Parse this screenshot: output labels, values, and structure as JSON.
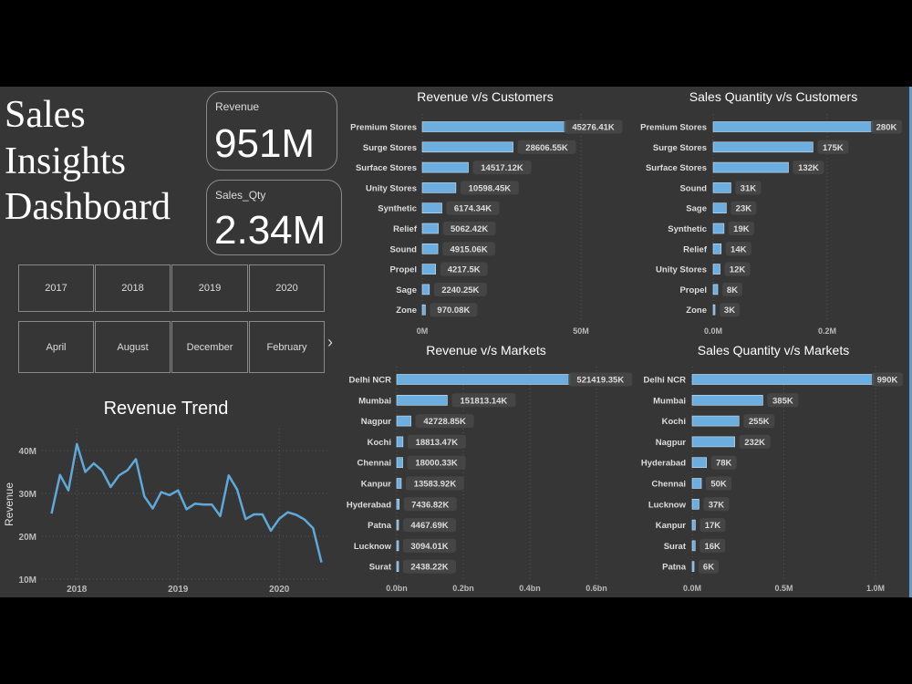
{
  "header": {
    "title_lines": [
      "Sales",
      "Insights",
      "Dashboard"
    ]
  },
  "kpis": [
    {
      "label": "Revenue",
      "value": "951M"
    },
    {
      "label": "Sales_Qty",
      "value": "2.34M"
    }
  ],
  "year_slicer": [
    "2017",
    "2018",
    "2019",
    "2020"
  ],
  "month_slicer": [
    "April",
    "August",
    "December",
    "February"
  ],
  "month_slicer_next_icon": "chevron-right-icon",
  "colors": {
    "bar": "#6caee0",
    "line": "#5fa8d8",
    "background": "#363636",
    "label_box": "#474747"
  },
  "chart_data": [
    {
      "type": "line",
      "title": "Revenue Trend",
      "ylabel": "Revenue",
      "xlabel": "",
      "x_ticks": [
        "2018",
        "2019",
        "2020"
      ],
      "y_ticks": [
        "10M",
        "20M",
        "30M",
        "40M"
      ],
      "ylim": [
        10,
        40
      ],
      "y_unit": "M",
      "grid": true,
      "x": [
        "2017-10",
        "2017-11",
        "2017-12",
        "2018-01",
        "2018-02",
        "2018-03",
        "2018-04",
        "2018-05",
        "2018-06",
        "2018-07",
        "2018-08",
        "2018-09",
        "2018-10",
        "2018-11",
        "2018-12",
        "2019-01",
        "2019-02",
        "2019-03",
        "2019-04",
        "2019-05",
        "2019-06",
        "2019-07",
        "2019-08",
        "2019-09",
        "2019-10",
        "2019-11",
        "2019-12",
        "2020-01",
        "2020-02",
        "2020-03",
        "2020-04",
        "2020-05",
        "2020-06"
      ],
      "values": [
        25.3,
        34.3,
        30.7,
        41.5,
        35.0,
        37.0,
        35.3,
        31.5,
        34.2,
        35.4,
        38.0,
        29.3,
        26.5,
        30.3,
        29.6,
        30.7,
        26.3,
        27.6,
        27.4,
        27.4,
        24.7,
        34.2,
        30.9,
        24.0,
        25.1,
        25.1,
        21.3,
        24.1,
        25.6,
        25.0,
        23.9,
        21.9,
        13.9
      ]
    },
    {
      "type": "bar",
      "title": "Revenue v/s Customers",
      "categories": [
        "Premium Stores",
        "Surge Stores",
        "Surface Stores",
        "Unity Stores",
        "Synthetic",
        "Relief",
        "Sound",
        "Propel",
        "Sage",
        "Zone"
      ],
      "values": [
        45276.41,
        28606.55,
        14517.12,
        10598.45,
        6174.34,
        5062.42,
        4915.06,
        4217.5,
        2240.25,
        970.08
      ],
      "value_unit": "K",
      "data_labels": [
        "45276.41K",
        "28606.55K",
        "14517.12K",
        "10598.45K",
        "6174.34K",
        "5062.42K",
        "4915.06K",
        "4217.5K",
        "2240.25K",
        "970.08K"
      ],
      "x_ticks": [
        {
          "value": 0,
          "label": "0M"
        },
        {
          "value": 50000,
          "label": "50M"
        }
      ],
      "grid": true
    },
    {
      "type": "bar",
      "title": "Sales Quantity v/s Customers",
      "categories": [
        "Premium Stores",
        "Surge Stores",
        "Surface Stores",
        "Sound",
        "Sage",
        "Synthetic",
        "Relief",
        "Unity Stores",
        "Propel",
        "Zone"
      ],
      "values": [
        280,
        175,
        132,
        31,
        23,
        19,
        14,
        12,
        8,
        3
      ],
      "value_unit": "K",
      "data_labels": [
        "280K",
        "175K",
        "132K",
        "31K",
        "23K",
        "19K",
        "14K",
        "12K",
        "8K",
        "3K"
      ],
      "x_ticks": [
        {
          "value": 0,
          "label": "0.0M"
        },
        {
          "value": 200,
          "label": "0.2M"
        }
      ],
      "grid": true
    },
    {
      "type": "bar",
      "title": "Revenue v/s Markets",
      "categories": [
        "Delhi NCR",
        "Mumbai",
        "Nagpur",
        "Kochi",
        "Chennai",
        "Kanpur",
        "Hyderabad",
        "Patna",
        "Lucknow",
        "Surat"
      ],
      "values": [
        521419.35,
        151813.14,
        42728.85,
        18813.47,
        18000.33,
        13583.92,
        7436.82,
        4467.69,
        3094.01,
        2438.22
      ],
      "value_unit": "K",
      "data_labels": [
        "521419.35K",
        "151813.14K",
        "42728.85K",
        "18813.47K",
        "18000.33K",
        "13583.92K",
        "7436.82K",
        "4467.69K",
        "3094.01K",
        "2438.22K"
      ],
      "x_ticks": [
        {
          "value": 0,
          "label": "0.0bn"
        },
        {
          "value": 200000,
          "label": "0.2bn"
        },
        {
          "value": 400000,
          "label": "0.4bn"
        },
        {
          "value": 600000,
          "label": "0.6bn"
        }
      ],
      "grid": true
    },
    {
      "type": "bar",
      "title": "Sales Quantity v/s Markets",
      "categories": [
        "Delhi NCR",
        "Mumbai",
        "Kochi",
        "Nagpur",
        "Hyderabad",
        "Chennai",
        "Lucknow",
        "Kanpur",
        "Surat",
        "Patna"
      ],
      "values": [
        990,
        385,
        255,
        232,
        78,
        50,
        37,
        17,
        16,
        6
      ],
      "value_unit": "K",
      "data_labels": [
        "990K",
        "385K",
        "255K",
        "232K",
        "78K",
        "50K",
        "37K",
        "17K",
        "16K",
        "6K"
      ],
      "x_ticks": [
        {
          "value": 0,
          "label": "0.0M"
        },
        {
          "value": 500,
          "label": "0.5M"
        },
        {
          "value": 1000,
          "label": "1.0M"
        }
      ],
      "grid": true
    }
  ]
}
